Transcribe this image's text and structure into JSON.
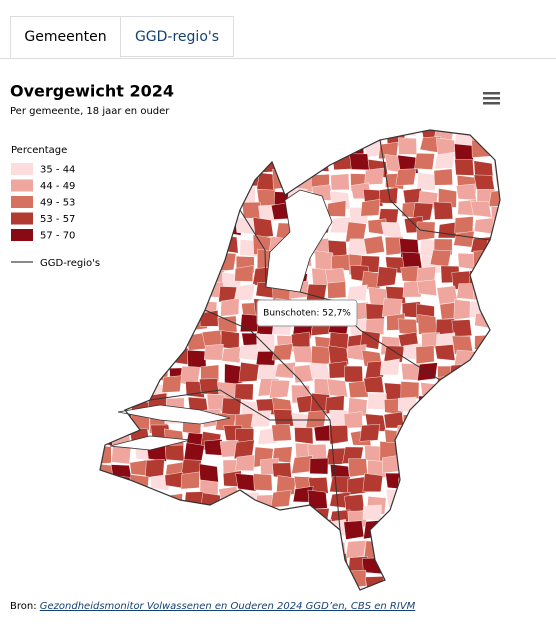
{
  "tabs": [
    "Gemeenten",
    "GGD-regio's"
  ],
  "title": "Overgewicht 2024",
  "subtitle": "Per gemeente, 18 jaar en ouder",
  "legend": {
    "title": "Percentage",
    "items": [
      {
        "label": "35 - 44",
        "color": "#fcdcdc"
      },
      {
        "label": "44 - 49",
        "color": "#efa69e"
      },
      {
        "label": "49 - 53",
        "color": "#d6705f"
      },
      {
        "label": "53 - 57",
        "color": "#b23a31"
      },
      {
        "label": "57 - 70",
        "color": "#8a0a13"
      }
    ],
    "line_label": "GGD-regio's"
  },
  "tooltip": "Bunschoten: 52,7%",
  "source": {
    "prefix": "Bron:",
    "link": "Gezondheidsmonitor Volwassenen en Ouderen 2024 GGD’en, CBS en RIVM"
  }
}
